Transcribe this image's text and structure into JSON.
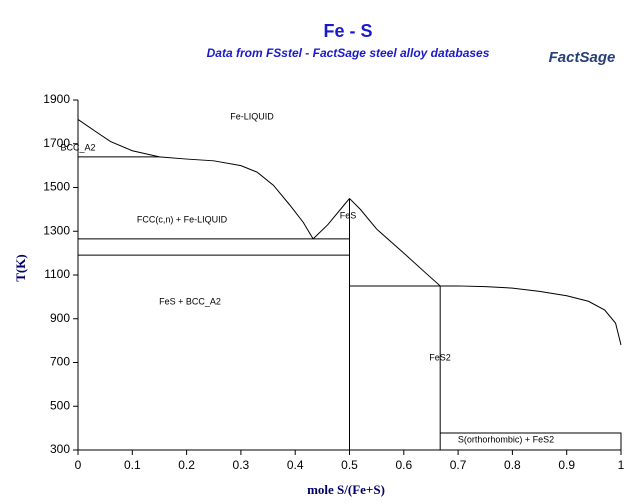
{
  "chart_data": {
    "type": "line",
    "title": "Fe - S",
    "subtitle": "Data from FSstel - FactSage steel alloy databases",
    "logo": "FactSage",
    "x_label": "mole S/(Fe+S)",
    "y_label": "T(K)",
    "xlim": [
      0,
      1
    ],
    "xticks": [
      0,
      0.1,
      0.2,
      0.3,
      0.4,
      0.5,
      0.6,
      0.7,
      0.8,
      0.9,
      1
    ],
    "ylim": [
      300,
      1900
    ],
    "yticks": [
      300,
      500,
      700,
      900,
      1100,
      1300,
      1500,
      1700,
      1900
    ],
    "color": "#000000",
    "curves": [
      {
        "x": [
          0,
          0.03,
          0.06,
          0.1,
          0.15,
          0.2,
          0.25,
          0.3,
          0.33,
          0.36,
          0.39,
          0.415,
          0.433
        ],
        "y": [
          1811,
          1760,
          1710,
          1668,
          1640,
          1630,
          1622,
          1600,
          1570,
          1510,
          1420,
          1340,
          1265
        ]
      },
      {
        "x": [
          0.433,
          0.46,
          0.49,
          0.5
        ],
        "y": [
          1265,
          1330,
          1420,
          1450
        ]
      },
      {
        "x": [
          0.5,
          0.52,
          0.55,
          0.6,
          0.64,
          0.667
        ],
        "y": [
          1450,
          1400,
          1310,
          1200,
          1110,
          1050
        ]
      },
      {
        "x": [
          0.667,
          0.7,
          0.75,
          0.8,
          0.85,
          0.9,
          0.94,
          0.97,
          0.99,
          1
        ],
        "y": [
          1050,
          1050,
          1047,
          1040,
          1025,
          1005,
          980,
          940,
          880,
          780
        ]
      },
      {
        "x": [
          0,
          0
        ],
        "y": [
          1640,
          1760
        ]
      },
      {
        "x": [
          0,
          0.15
        ],
        "y": [
          1640,
          1640
        ]
      },
      {
        "x": [
          0,
          0.5
        ],
        "y": [
          1265,
          1265
        ]
      },
      {
        "x": [
          0,
          0.5
        ],
        "y": [
          1191,
          1191
        ]
      },
      {
        "x": [
          0.5,
          0.5
        ],
        "y": [
          300,
          1450
        ]
      },
      {
        "x": [
          0.5,
          0.667
        ],
        "y": [
          1050,
          1050
        ]
      },
      {
        "x": [
          0.667,
          0.667
        ],
        "y": [
          300,
          1050
        ]
      },
      {
        "x": [
          0.667,
          1
        ],
        "y": [
          378,
          378
        ]
      },
      {
        "x": [
          1,
          1
        ],
        "y": [
          300,
          380
        ]
      }
    ],
    "annotations": [
      "Fe-LIQUID",
      "BCC_A2",
      "FCC(c,n) + Fe-LIQUID",
      "FeS",
      "FeS + BCC_A2",
      "FeS2",
      "S(orthorhombic) + FeS2"
    ]
  }
}
